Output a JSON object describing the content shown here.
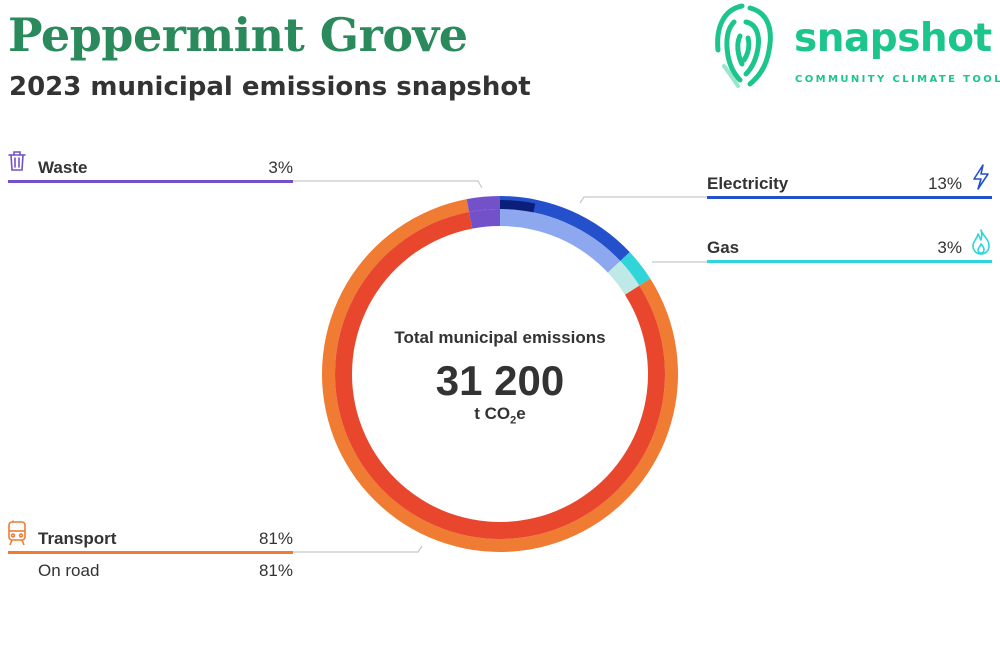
{
  "header": {
    "title": "Peppermint Grove",
    "subtitle": "2023 municipal emissions snapshot"
  },
  "logo": {
    "word": "snapshot",
    "tagline": "COMMUNITY CLIMATE TOOL",
    "color": "#1cc58c"
  },
  "center": {
    "label": "Total municipal emissions",
    "value": "31 200",
    "unit_prefix": "t CO",
    "unit_sub": "2",
    "unit_suffix": "e"
  },
  "colors": {
    "waste": "#7352c9",
    "electricity": "#2450cc",
    "gas": "#30d5d9",
    "transport": "#f07b33",
    "transport_inner": "#e8472d"
  },
  "chart_data": {
    "type": "pie",
    "title": "2023 municipal emissions snapshot",
    "total": "31 200",
    "unit": "t CO2e",
    "series": [
      {
        "name": "Electricity",
        "value": 13,
        "label": "13%",
        "icon": "lightning-icon"
      },
      {
        "name": "Gas",
        "value": 3,
        "label": "3%",
        "icon": "flame-icon"
      },
      {
        "name": "Transport",
        "value": 81,
        "label": "81%",
        "icon": "train-icon",
        "sub": [
          {
            "name": "On road",
            "value": 81,
            "label": "81%"
          }
        ]
      },
      {
        "name": "Waste",
        "value": 3,
        "label": "3%",
        "icon": "trash-icon"
      }
    ]
  }
}
